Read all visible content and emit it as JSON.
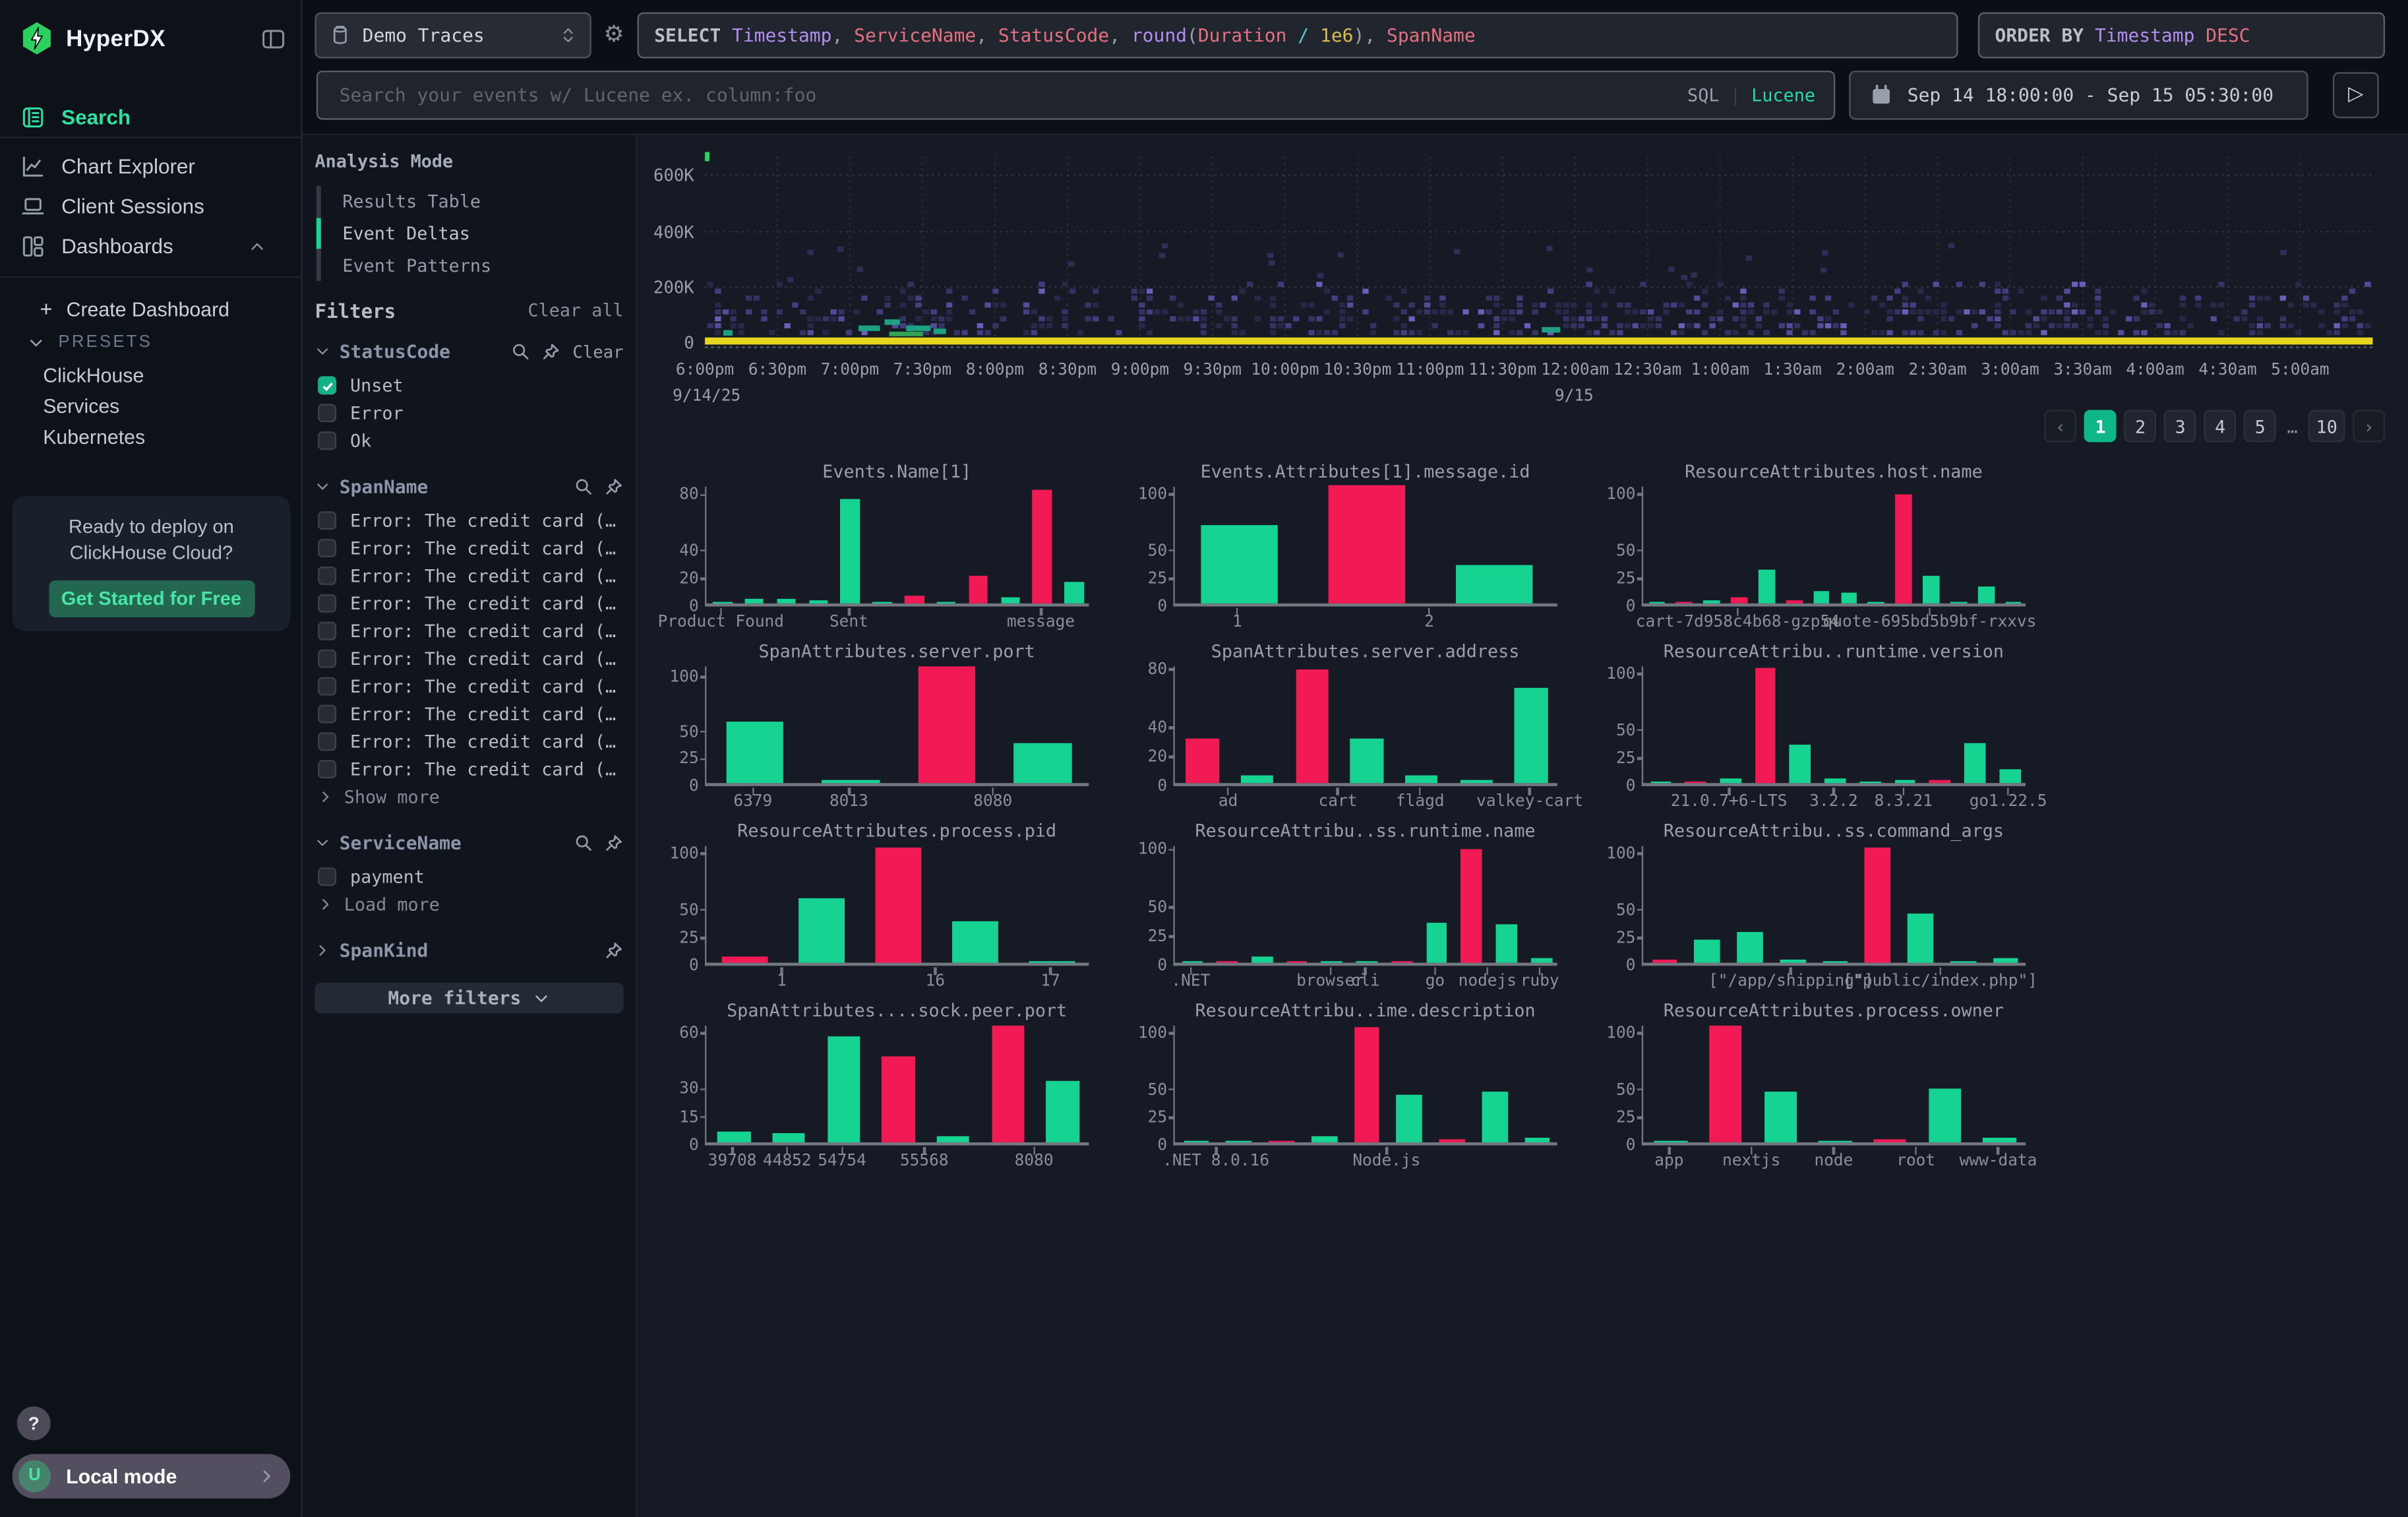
{
  "colors": {
    "accent_green": "#16d392",
    "bar_red": "#f21a55",
    "pagination_active": "#0fb787",
    "brand_green": "#2ad15e",
    "link_green": "#2bd9a2",
    "heat_yellow": "#e6d51f",
    "heat_purple": "#39336a",
    "heat_teal": "#1ea183",
    "syntax_purple": "#b38df0",
    "syntax_red": "#e4717f",
    "syntax_cyan": "#52ccd8",
    "syntax_yellow": "#d8ba50"
  },
  "sidebar": {
    "brand": "HyperDX",
    "nav": [
      {
        "label": "Search",
        "icon": "search-doc",
        "active": true
      },
      {
        "label": "Chart Explorer",
        "icon": "chart-line",
        "active": false
      },
      {
        "label": "Client Sessions",
        "icon": "laptop",
        "active": false
      },
      {
        "label": "Dashboards",
        "icon": "layout-grid",
        "active": false,
        "expanded": true
      }
    ],
    "create_dashboard_label": "Create Dashboard",
    "presets_label": "PRESETS",
    "preset_items": [
      "ClickHouse",
      "Services",
      "Kubernetes"
    ],
    "promo": {
      "line1": "Ready to deploy on",
      "line2": "ClickHouse Cloud?",
      "cta": "Get Started for Free"
    },
    "help_label": "?",
    "user": {
      "avatar_initial": "U",
      "label": "Local mode"
    }
  },
  "topbar": {
    "source": {
      "label": "Demo Traces"
    },
    "sql_query": {
      "tokens": [
        {
          "t": "SELECT ",
          "c": "kw"
        },
        {
          "t": "Timestamp",
          "c": "pur"
        },
        {
          "t": ", ",
          "c": "pun"
        },
        {
          "t": "ServiceName",
          "c": "red"
        },
        {
          "t": ", ",
          "c": "pun"
        },
        {
          "t": "StatusCode",
          "c": "red"
        },
        {
          "t": ", ",
          "c": "pun"
        },
        {
          "t": "round",
          "c": "pur"
        },
        {
          "t": "(",
          "c": "pun"
        },
        {
          "t": "Duration",
          "c": "red"
        },
        {
          "t": " ",
          "c": "pun"
        },
        {
          "t": "/",
          "c": "cyan"
        },
        {
          "t": " ",
          "c": "pun"
        },
        {
          "t": "1e6",
          "c": "yel"
        },
        {
          "t": ")",
          "c": "pun"
        },
        {
          "t": ", ",
          "c": "pun"
        },
        {
          "t": "SpanName",
          "c": "red"
        }
      ]
    },
    "order_by": {
      "tokens": [
        {
          "t": "ORDER BY ",
          "c": "kw"
        },
        {
          "t": "Timestamp",
          "c": "pur"
        },
        {
          "t": " DESC",
          "c": "red"
        }
      ]
    },
    "search": {
      "placeholder": "Search your events w/ Lucene ex. column:foo",
      "sql_label": "SQL",
      "divider": "|",
      "lucene_label": "Lucene"
    },
    "time_range": {
      "label": "Sep 14 18:00:00 - Sep 15 05:30:00"
    }
  },
  "filters_panel": {
    "analysis_mode": {
      "title": "Analysis Mode",
      "options": [
        {
          "label": "Results Table",
          "active": false
        },
        {
          "label": "Event Deltas",
          "active": true
        },
        {
          "label": "Event Patterns",
          "active": false
        }
      ]
    },
    "filters_title": "Filters",
    "clear_all_label": "Clear all",
    "groups": [
      {
        "name": "StatusCode",
        "expanded": true,
        "search": true,
        "pin": true,
        "clear_label": "Clear",
        "items": [
          {
            "label": "Unset",
            "checked": true
          },
          {
            "label": "Error",
            "checked": false
          },
          {
            "label": "Ok",
            "checked": false
          }
        ]
      },
      {
        "name": "SpanName",
        "expanded": true,
        "search": true,
        "pin": true,
        "items": [
          {
            "label": "Error: The credit card (…",
            "checked": false
          },
          {
            "label": "Error: The credit card (…",
            "checked": false
          },
          {
            "label": "Error: The credit card (…",
            "checked": false
          },
          {
            "label": "Error: The credit card (…",
            "checked": false
          },
          {
            "label": "Error: The credit card (…",
            "checked": false
          },
          {
            "label": "Error: The credit card (…",
            "checked": false
          },
          {
            "label": "Error: The credit card (…",
            "checked": false
          },
          {
            "label": "Error: The credit card (…",
            "checked": false
          },
          {
            "label": "Error: The credit card (…",
            "checked": false
          },
          {
            "label": "Error: The credit card (…",
            "checked": false
          }
        ],
        "more_label": "Show more"
      },
      {
        "name": "ServiceName",
        "expanded": true,
        "search": true,
        "pin": true,
        "items": [
          {
            "label": "payment",
            "checked": false
          }
        ],
        "more_label": "Load more"
      },
      {
        "name": "SpanKind",
        "expanded": false,
        "search": false,
        "pin": true,
        "items": []
      }
    ],
    "more_filters_label": "More filters"
  },
  "pagination": {
    "prev": "‹",
    "pages": [
      "1",
      "2",
      "3",
      "4",
      "5"
    ],
    "ellipsis": "…",
    "last_page": "10",
    "next": "›",
    "active_page": "1"
  },
  "chart_data": {
    "overview": {
      "type": "heatmap",
      "title": "",
      "yticks": [
        "600K",
        "400K",
        "200K",
        "0"
      ],
      "ylim": [
        0,
        680000
      ],
      "grid": "dotted",
      "legend": "off",
      "description": "Event duration heatmap over time: dense yellow band at 0, sparse indigo cells mostly below 200K, teal cluster near 7:30pm",
      "xticks": [
        "6:00pm",
        "6:30pm",
        "7:00pm",
        "7:30pm",
        "8:00pm",
        "8:30pm",
        "9:00pm",
        "9:30pm",
        "10:00pm",
        "10:30pm",
        "11:00pm",
        "11:30pm",
        "12:00am",
        "12:30am",
        "1:00am",
        "1:30am",
        "2:00am",
        "2:30am",
        "3:00am",
        "3:30am",
        "4:00am",
        "4:30am",
        "5:00am"
      ],
      "x_date_labels": [
        {
          "text": "9/14/25",
          "under": "6:00pm"
        },
        {
          "text": "9/15",
          "under": "12:00am"
        }
      ]
    },
    "histograms": [
      {
        "type": "bar",
        "title": "Events.Name[1]",
        "yticks": [
          80,
          40,
          20,
          0
        ],
        "ymax": 86,
        "bars": [
          [
            1,
            "g"
          ],
          [
            3.5,
            "g"
          ],
          [
            3,
            "g"
          ],
          [
            2.5,
            "g"
          ],
          [
            75,
            "g"
          ],
          [
            1.5,
            "g"
          ],
          [
            6,
            "r"
          ],
          [
            1,
            "g"
          ],
          [
            20,
            "r"
          ],
          [
            4.5,
            "g"
          ],
          [
            82,
            "r"
          ],
          [
            15,
            "g"
          ]
        ],
        "xlabels": [
          [
            "Product Found",
            0
          ],
          [
            "Sent",
            4
          ],
          [
            "message",
            10
          ]
        ]
      },
      {
        "type": "bar",
        "title": "Events.Attributes[1].message.id",
        "yticks": [
          100,
          50,
          25,
          0
        ],
        "ymax": 107,
        "bars": [
          [
            70,
            "g"
          ],
          [
            105,
            "r"
          ],
          [
            35,
            "g"
          ]
        ],
        "xlabels": [
          [
            "1",
            0
          ],
          [
            "2",
            1.5
          ]
        ]
      },
      {
        "type": "bar",
        "title": "ResourceAttributes.host.name",
        "yticks": [
          100,
          50,
          25,
          0
        ],
        "ymax": 107,
        "bars": [
          [
            1,
            "g"
          ],
          [
            2,
            "r"
          ],
          [
            3,
            "g"
          ],
          [
            5,
            "r"
          ],
          [
            30,
            "g"
          ],
          [
            3,
            "r"
          ],
          [
            11,
            "g"
          ],
          [
            9,
            "g"
          ],
          [
            1,
            "g"
          ],
          [
            98,
            "r"
          ],
          [
            25,
            "g"
          ],
          [
            1,
            "g"
          ],
          [
            15,
            "g"
          ],
          [
            2,
            "g"
          ]
        ],
        "xlabels": [
          [
            "cart-7d958c4b68-gzp54",
            3
          ],
          [
            "quote-695bd5b9bf-rxxvs",
            10
          ]
        ]
      },
      {
        "type": "bar",
        "title": "SpanAttributes.server.port",
        "yticks": [
          100,
          50,
          25,
          0
        ],
        "ymax": 110,
        "bars": [
          [
            57,
            "g"
          ],
          [
            3,
            "g"
          ],
          [
            107,
            "r"
          ],
          [
            36,
            "g"
          ]
        ],
        "xlabels": [
          [
            "6379",
            0
          ],
          [
            "8013",
            1
          ],
          [
            "8080",
            2.5
          ]
        ]
      },
      {
        "type": "bar",
        "title": "SpanAttributes.server.address",
        "yticks": [
          80,
          40,
          20,
          0
        ],
        "ymax": 82,
        "bars": [
          [
            30,
            "r"
          ],
          [
            5,
            "g"
          ],
          [
            78,
            "r"
          ],
          [
            30,
            "g"
          ],
          [
            5,
            "g"
          ],
          [
            2,
            "g"
          ],
          [
            65,
            "g"
          ]
        ],
        "xlabels": [
          [
            "ad",
            0.5
          ],
          [
            "cart",
            2.5
          ],
          [
            "flagd",
            4
          ],
          [
            "valkey-cart",
            6
          ]
        ]
      },
      {
        "type": "bar",
        "title": "ResourceAttribu..runtime.version",
        "yticks": [
          100,
          50,
          25,
          0
        ],
        "ymax": 107,
        "bars": [
          [
            1,
            "g"
          ],
          [
            2,
            "r"
          ],
          [
            4,
            "g"
          ],
          [
            103,
            "r"
          ],
          [
            34,
            "g"
          ],
          [
            4,
            "g"
          ],
          [
            2,
            "g"
          ],
          [
            3,
            "g"
          ],
          [
            3,
            "r"
          ],
          [
            36,
            "g"
          ],
          [
            13,
            "g"
          ]
        ],
        "xlabels": [
          [
            "21.0.7+6-LTS",
            2
          ],
          [
            "3.2.2",
            5
          ],
          [
            "8.3.21",
            7
          ],
          [
            "go1.22.5",
            10
          ]
        ]
      },
      {
        "type": "bar",
        "title": "ResourceAttributes.process.pid",
        "yticks": [
          100,
          50,
          25,
          0
        ],
        "ymax": 107,
        "bars": [
          [
            5,
            "r"
          ],
          [
            57,
            "g"
          ],
          [
            103,
            "r"
          ],
          [
            37,
            "g"
          ],
          [
            1,
            "g"
          ]
        ],
        "xlabels": [
          [
            "1",
            0.5
          ],
          [
            "16",
            2.5
          ],
          [
            "17",
            4
          ]
        ]
      },
      {
        "type": "bar",
        "title": "ResourceAttribu..ss.runtime.name",
        "yticks": [
          100,
          50,
          25,
          0
        ],
        "ymax": 103,
        "bars": [
          [
            2,
            "g"
          ],
          [
            2,
            "r"
          ],
          [
            5,
            "g"
          ],
          [
            1,
            "r"
          ],
          [
            2,
            "g"
          ],
          [
            2,
            "g"
          ],
          [
            2,
            "r"
          ],
          [
            35,
            "g"
          ],
          [
            98,
            "r"
          ],
          [
            33,
            "g"
          ],
          [
            4,
            "g"
          ]
        ],
        "xlabels": [
          [
            ".NET",
            0
          ],
          [
            "browser",
            4
          ],
          [
            "cli",
            5
          ],
          [
            "go",
            7
          ],
          [
            "nodejs",
            8.5
          ],
          [
            "ruby",
            10
          ]
        ]
      },
      {
        "type": "bar",
        "title": "ResourceAttribu..ss.command_args",
        "yticks": [
          100,
          50,
          25,
          0
        ],
        "ymax": 107,
        "bars": [
          [
            3,
            "r"
          ],
          [
            20,
            "g"
          ],
          [
            27,
            "g"
          ],
          [
            3,
            "g"
          ],
          [
            1,
            "g"
          ],
          [
            103,
            "r"
          ],
          [
            44,
            "g"
          ],
          [
            1,
            "g"
          ],
          [
            4,
            "g"
          ]
        ],
        "xlabels": [
          [
            "[\"/app/shipping\"]",
            3
          ],
          [
            "[\"public/index.php\"]",
            6.5
          ]
        ]
      },
      {
        "type": "bar",
        "title": "SpanAttributes....sock.peer.port",
        "yticks": [
          60,
          30,
          15,
          0
        ],
        "ymax": 64,
        "bars": [
          [
            6,
            "g"
          ],
          [
            5,
            "g"
          ],
          [
            57,
            "g"
          ],
          [
            46,
            "r"
          ],
          [
            3,
            "g"
          ],
          [
            62,
            "r"
          ],
          [
            33,
            "g"
          ]
        ],
        "xlabels": [
          [
            "39708",
            0
          ],
          [
            "44852",
            1
          ],
          [
            "54754",
            2
          ],
          [
            "55568",
            3.5
          ],
          [
            "8080",
            5.5
          ]
        ]
      },
      {
        "type": "bar",
        "title": "ResourceAttribu..ime.description",
        "yticks": [
          100,
          50,
          25,
          0
        ],
        "ymax": 107,
        "bars": [
          [
            2,
            "g"
          ],
          [
            1,
            "g"
          ],
          [
            2,
            "r"
          ],
          [
            5,
            "g"
          ],
          [
            103,
            "r"
          ],
          [
            43,
            "g"
          ],
          [
            3,
            "r"
          ],
          [
            45,
            "g"
          ],
          [
            4,
            "g"
          ]
        ],
        "xlabels": [
          [
            ".NET 8.0.16",
            0.5
          ],
          [
            "Node.js",
            4.5
          ]
        ]
      },
      {
        "type": "bar",
        "title": "ResourceAttributes.process.owner",
        "yticks": [
          100,
          50,
          25,
          0
        ],
        "ymax": 107,
        "bars": [
          [
            2,
            "g"
          ],
          [
            104,
            "r"
          ],
          [
            45,
            "g"
          ],
          [
            1,
            "g"
          ],
          [
            3,
            "r"
          ],
          [
            48,
            "g"
          ],
          [
            4,
            "g"
          ]
        ],
        "xlabels": [
          [
            "app",
            0
          ],
          [
            "nextjs",
            1.5
          ],
          [
            "node",
            3
          ],
          [
            "root",
            4.5
          ],
          [
            "www-data",
            6
          ]
        ]
      }
    ]
  }
}
